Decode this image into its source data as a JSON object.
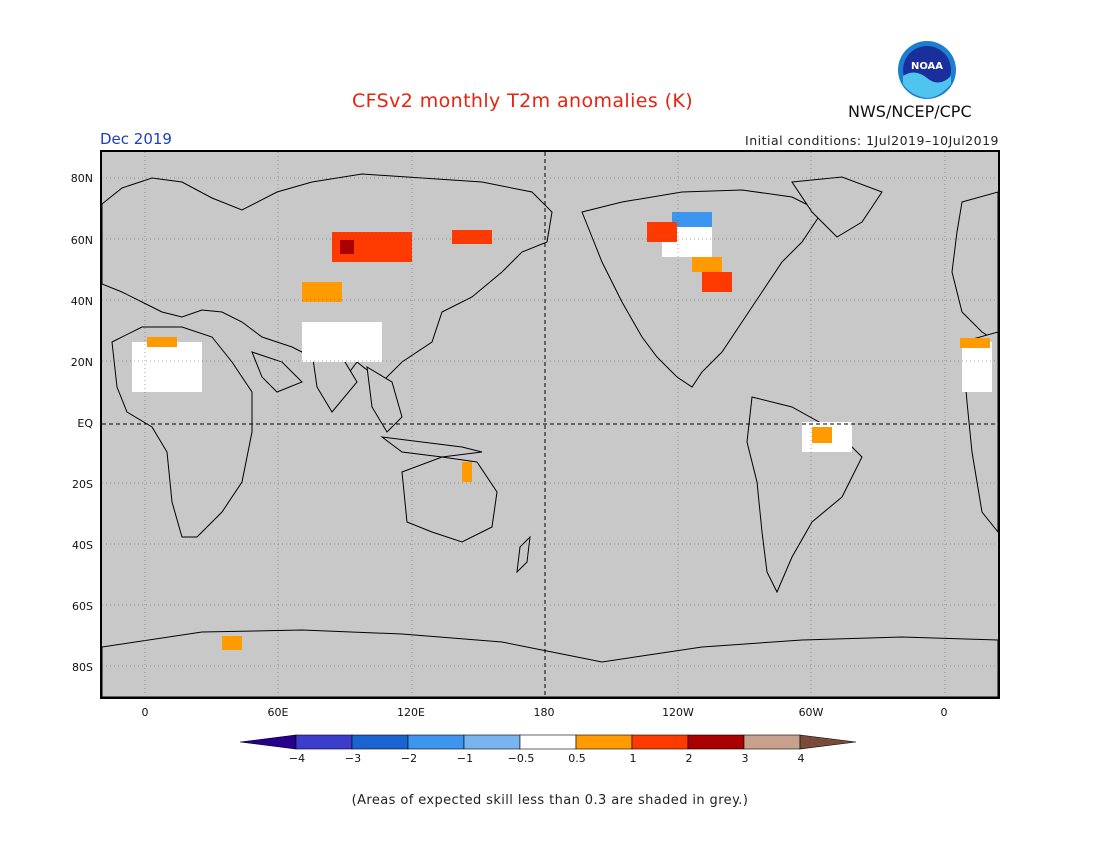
{
  "header": {
    "title": "CFSv2 monthly T2m anomalies (K)",
    "agency": "NWS/NCEP/CPC",
    "month": "Dec 2019",
    "initial_conditions": "Initial conditions: 1Jul2019–10Jul2019"
  },
  "logo": {
    "icon": "noaa-logo",
    "text": "NOAA"
  },
  "map": {
    "projection": "equirectangular, centered 180",
    "lat_labels": [
      "80N",
      "60N",
      "40N",
      "20N",
      "EQ",
      "20S",
      "40S",
      "60S",
      "80S"
    ],
    "lon_labels": [
      "0",
      "60E",
      "120E",
      "180",
      "120W",
      "60W",
      "0"
    ],
    "grid": true,
    "mask_color": "#c8c8c8"
  },
  "colorbar": {
    "colors": [
      "#24008c",
      "#3d3dcc",
      "#1a64d2",
      "#3c96f0",
      "#78b4f0",
      "#ffffff",
      "#ff9a00",
      "#ff3a00",
      "#aa0000",
      "#c8a08c",
      "#7a4a3a"
    ],
    "labels": [
      "−4",
      "−3",
      "−2",
      "−1",
      "−0.5",
      "0.5",
      "1",
      "2",
      "3",
      "4"
    ]
  },
  "footnote": "(Areas of expected skill less than 0.3 are shaded in grey.)"
}
